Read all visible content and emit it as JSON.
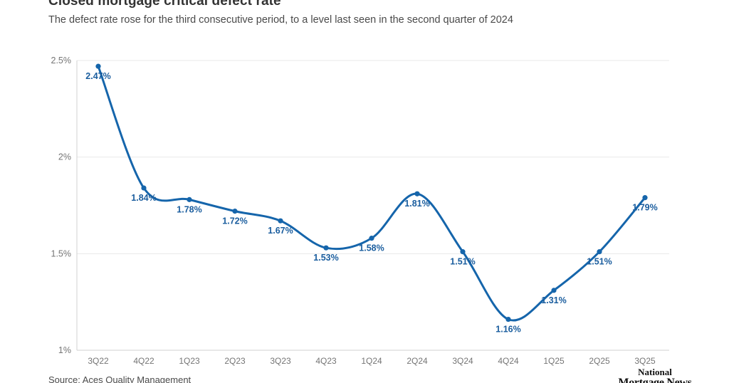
{
  "header": {
    "title": "Closed mortgage critical defect rate",
    "subtitle": "The defect rate rose for the third consecutive period, to a level last seen in the second quarter of 2024"
  },
  "footer": {
    "source": "Source: Aces Quality Management",
    "logo_line1": "National",
    "logo_line2": "Mortgage News"
  },
  "chart_data": {
    "type": "line",
    "title": "Closed mortgage critical defect rate",
    "subtitle": "The defect rate rose for the third consecutive period, to a level last seen in the second quarter of 2024",
    "categories": [
      "3Q22",
      "4Q22",
      "1Q23",
      "2Q23",
      "3Q23",
      "4Q23",
      "1Q24",
      "2Q24",
      "3Q24",
      "4Q24",
      "1Q25",
      "2Q25",
      "3Q25"
    ],
    "values": [
      2.47,
      1.84,
      1.78,
      1.72,
      1.67,
      1.53,
      1.58,
      1.81,
      1.51,
      1.16,
      1.31,
      1.51,
      1.79
    ],
    "point_labels": [
      "2.47%",
      "1.84%",
      "1.78%",
      "1.72%",
      "1.67%",
      "1.53%",
      "1.58%",
      "1.81%",
      "1.51%",
      "1.16%",
      "1.31%",
      "1.51%",
      "1.79%"
    ],
    "y_ticks": [
      {
        "value": 2.5,
        "label": "2.5%"
      },
      {
        "value": 2.0,
        "label": "2%"
      },
      {
        "value": 1.5,
        "label": "1.5%"
      },
      {
        "value": 1.0,
        "label": "1%"
      }
    ],
    "ylim": [
      1.0,
      2.5
    ],
    "xlabel": "",
    "ylabel": "",
    "grid": true,
    "legend": "none",
    "colors": {
      "line": "#1565ab",
      "marker": "#1565ab",
      "data_label": "#1a5d9e",
      "gridline": "#e9e9e9",
      "axis_line": "#d2d2d2",
      "tick_label": "#757575"
    }
  }
}
